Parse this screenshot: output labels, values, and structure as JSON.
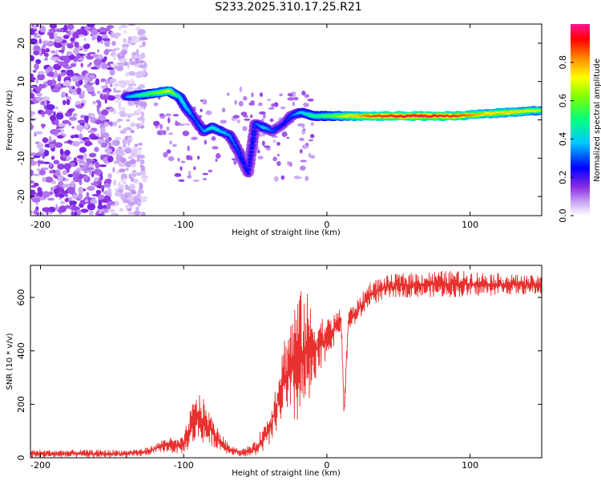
{
  "title": "S233.2025.310.17.25.R21",
  "chart_data": [
    {
      "type": "heatmap",
      "name": "spectrogram",
      "xlabel": "Height of straight line (km)",
      "ylabel": "Frequency (Hz)",
      "xlim": [
        -207,
        150
      ],
      "ylim": [
        -25,
        25
      ],
      "xticks": [
        -200,
        -100,
        0,
        100
      ],
      "yticks": [
        -20,
        -10,
        0,
        10,
        20
      ],
      "colorbar": {
        "label": "Normalized spectral amplitude",
        "range": [
          0,
          1
        ],
        "ticks": [
          0.0,
          0.2,
          0.4,
          0.6,
          0.8
        ]
      },
      "ridge": [
        {
          "x": -140,
          "y": 6,
          "a": 0.35
        },
        {
          "x": -130,
          "y": 6.5,
          "a": 0.5
        },
        {
          "x": -120,
          "y": 7,
          "a": 0.6
        },
        {
          "x": -110,
          "y": 7.5,
          "a": 0.7
        },
        {
          "x": -103,
          "y": 6,
          "a": 0.45
        },
        {
          "x": -98,
          "y": 3,
          "a": 0.4
        },
        {
          "x": -92,
          "y": 0,
          "a": 0.3
        },
        {
          "x": -86,
          "y": -3,
          "a": 0.35
        },
        {
          "x": -80,
          "y": -2,
          "a": 0.45
        },
        {
          "x": -74,
          "y": -3,
          "a": 0.4
        },
        {
          "x": -68,
          "y": -4,
          "a": 0.35
        },
        {
          "x": -62,
          "y": -8,
          "a": 0.3
        },
        {
          "x": -55,
          "y": -14,
          "a": 0.25
        },
        {
          "x": -50,
          "y": -1,
          "a": 0.3
        },
        {
          "x": -44,
          "y": -2,
          "a": 0.4
        },
        {
          "x": -38,
          "y": -3,
          "a": 0.3
        },
        {
          "x": -30,
          "y": -1,
          "a": 0.25
        },
        {
          "x": -25,
          "y": 1,
          "a": 0.3
        },
        {
          "x": -18,
          "y": 2,
          "a": 0.4
        },
        {
          "x": -10,
          "y": 1,
          "a": 0.5
        },
        {
          "x": -2,
          "y": 1,
          "a": 0.55
        },
        {
          "x": 5,
          "y": 1,
          "a": 0.6
        },
        {
          "x": 15,
          "y": 1,
          "a": 0.75
        },
        {
          "x": 30,
          "y": 1,
          "a": 0.9
        },
        {
          "x": 50,
          "y": 1,
          "a": 1.0
        },
        {
          "x": 70,
          "y": 1,
          "a": 1.0
        },
        {
          "x": 90,
          "y": 1,
          "a": 0.95
        },
        {
          "x": 110,
          "y": 1.5,
          "a": 0.8
        },
        {
          "x": 130,
          "y": 2,
          "a": 0.8
        },
        {
          "x": 150,
          "y": 2.5,
          "a": 0.7
        }
      ]
    },
    {
      "type": "line",
      "name": "snr",
      "xlabel": "Height of straight line (km)",
      "ylabel": "SNR (10 * v/v)",
      "xlim": [
        -207,
        150
      ],
      "ylim": [
        0,
        720
      ],
      "xticks": [
        -200,
        -100,
        0,
        100
      ],
      "yticks": [
        0,
        200,
        400,
        600
      ],
      "color": "#e8312f",
      "envelope": {
        "x": [
          -207,
          -140,
          -128,
          -120,
          -112,
          -105,
          -100,
          -95,
          -90,
          -85,
          -80,
          -75,
          -70,
          -60,
          -50,
          -40,
          -35,
          -30,
          -25,
          -20,
          -15,
          -10,
          -5,
          0,
          5,
          10,
          12,
          15,
          20,
          25,
          30,
          40,
          50,
          80,
          100,
          120,
          150
        ],
        "lo": [
          0,
          0,
          5,
          15,
          20,
          15,
          15,
          40,
          60,
          50,
          40,
          30,
          15,
          5,
          5,
          40,
          100,
          150,
          100,
          120,
          150,
          220,
          300,
          380,
          420,
          480,
          130,
          470,
          500,
          530,
          570,
          590,
          600,
          600,
          600,
          610,
          610
        ],
        "hi": [
          30,
          30,
          35,
          50,
          80,
          70,
          80,
          190,
          250,
          210,
          150,
          100,
          60,
          30,
          60,
          170,
          300,
          450,
          550,
          620,
          640,
          550,
          540,
          520,
          540,
          560,
          200,
          560,
          580,
          620,
          660,
          680,
          690,
          700,
          700,
          690,
          680
        ]
      }
    }
  ]
}
